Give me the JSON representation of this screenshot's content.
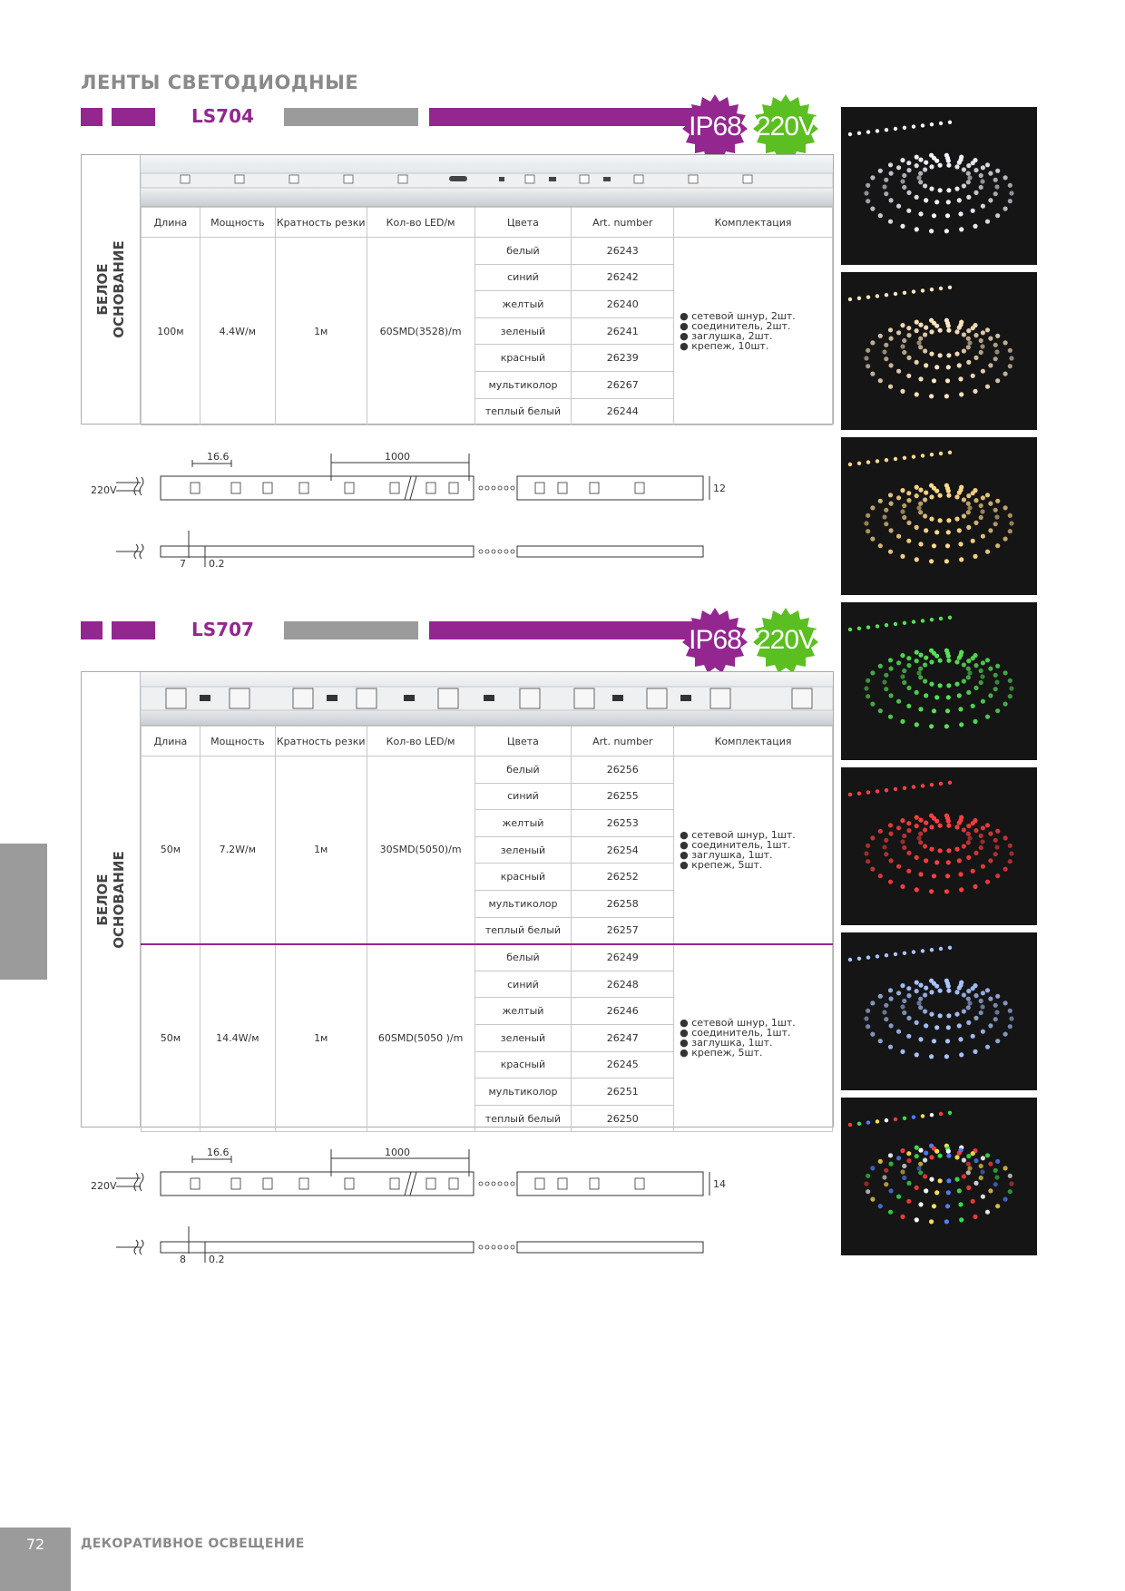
{
  "page_heading": "ЛЕНТЫ СВЕТОДИОДНЫЕ",
  "badges": {
    "ip": "IP68",
    "voltage": "220V"
  },
  "colors": {
    "purple": "#93278f",
    "gray": "#9b9b9b",
    "badge_green": "#5bbf21"
  },
  "columns": [
    "Длина",
    "Мощность",
    "Кратность резки",
    "Кол-во LED/м",
    "Цвета",
    "Art. number",
    "Комплектация"
  ],
  "sections": [
    {
      "model": "LS704",
      "vertical_label": [
        "БЕЛОЕ",
        "ОСНОВАНИЕ"
      ],
      "groups": [
        {
          "length": "100м",
          "power": "4.4W/м",
          "cut": "1м",
          "leds": "60SMD(3528)/m",
          "kit": [
            "сетевой шнур, 2шт.",
            "соединитель, 2шт.",
            "заглушка, 2шт.",
            "крепеж, 10шт."
          ],
          "rows": [
            {
              "color": "белый",
              "art": "26243"
            },
            {
              "color": "синий",
              "art": "26242"
            },
            {
              "color": "желтый",
              "art": "26240"
            },
            {
              "color": "зеленый",
              "art": "26241"
            },
            {
              "color": "красный",
              "art": "26239"
            },
            {
              "color": "мультиколор",
              "art": "26267"
            },
            {
              "color": "теплый белый",
              "art": "26244"
            }
          ]
        }
      ],
      "drawing": {
        "pitch": "16.6",
        "segment": "1000",
        "height": "12",
        "voltage": "220V",
        "thickness": "7",
        "gap": "0.2"
      }
    },
    {
      "model": "LS707",
      "vertical_label": [
        "БЕЛОЕ",
        "ОСНОВАНИЕ"
      ],
      "groups": [
        {
          "length": "50м",
          "power": "7.2W/м",
          "cut": "1м",
          "leds": "30SMD(5050)/m",
          "kit": [
            "сетевой шнур, 1шт.",
            "соединитель, 1шт.",
            "заглушка, 1шт.",
            "крепеж, 5шт."
          ],
          "rows": [
            {
              "color": "белый",
              "art": "26256"
            },
            {
              "color": "синий",
              "art": "26255"
            },
            {
              "color": "желтый",
              "art": "26253"
            },
            {
              "color": "зеленый",
              "art": "26254"
            },
            {
              "color": "красный",
              "art": "26252"
            },
            {
              "color": "мультиколор",
              "art": "26258"
            },
            {
              "color": "теплый белый",
              "art": "26257"
            }
          ]
        },
        {
          "length": "50м",
          "power": "14.4W/м",
          "cut": "1м",
          "leds": "60SMD(5050 )/m",
          "kit": [
            "сетевой шнур, 1шт.",
            "соединитель, 1шт.",
            "заглушка, 1шт.",
            "крепеж, 5шт."
          ],
          "rows": [
            {
              "color": "белый",
              "art": "26249"
            },
            {
              "color": "синий",
              "art": "26248"
            },
            {
              "color": "желтый",
              "art": "26246"
            },
            {
              "color": "зеленый",
              "art": "26247"
            },
            {
              "color": "красный",
              "art": "26245"
            },
            {
              "color": "мультиколор",
              "art": "26251"
            },
            {
              "color": "теплый белый",
              "art": "26250"
            }
          ]
        }
      ],
      "drawing": {
        "pitch": "16.6",
        "segment": "1000",
        "height": "14",
        "voltage": "220V",
        "thickness": "8",
        "gap": "0.2"
      }
    }
  ],
  "photos": [
    {
      "name": "white",
      "tint": "#f4f4ff"
    },
    {
      "name": "warm-white",
      "tint": "#ffe6c0"
    },
    {
      "name": "yellow",
      "tint": "#ffd98a"
    },
    {
      "name": "green",
      "tint": "#55e055"
    },
    {
      "name": "red",
      "tint": "#ff4040"
    },
    {
      "name": "blue",
      "tint": "#a9c4ff"
    },
    {
      "name": "multicolor",
      "tint": "multi"
    }
  ],
  "footer": {
    "page_number": "72",
    "section_title": "ДЕКОРАТИВНОЕ ОСВЕЩЕНИЕ"
  }
}
